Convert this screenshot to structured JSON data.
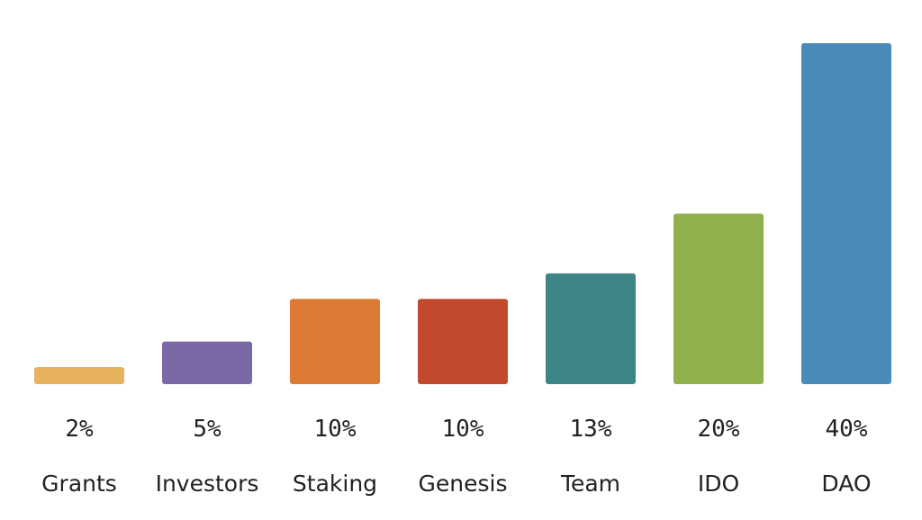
{
  "chart_data": {
    "type": "bar",
    "categories": [
      "Grants",
      "Investors",
      "Staking",
      "Genesis",
      "Team",
      "IDO",
      "DAO"
    ],
    "values": [
      2,
      5,
      10,
      10,
      13,
      20,
      40
    ],
    "value_labels": [
      "2%",
      "5%",
      "10%",
      "10%",
      "13%",
      "20%",
      "40%"
    ],
    "colors": [
      "#e8b15e",
      "#7b68a6",
      "#dd7a33",
      "#c24a2c",
      "#3e8585",
      "#8fb04a",
      "#4a8bbb"
    ]
  }
}
